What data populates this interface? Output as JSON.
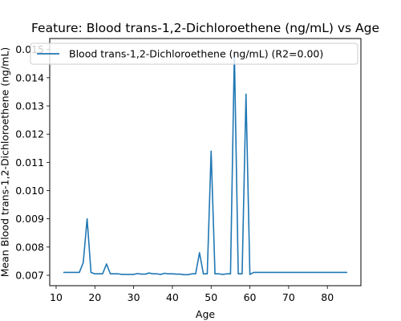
{
  "chart_data": {
    "type": "line",
    "title": "Feature: Blood trans-1,2-Dichloroethene (ng/mL) vs Age",
    "xlabel": "Age",
    "ylabel": "Mean Blood trans-1,2-Dichloroethene (ng/mL)",
    "xlim": [
      8.35,
      88.65
    ],
    "ylim": [
      0.00663,
      0.01539
    ],
    "xticks": [
      10,
      20,
      30,
      40,
      50,
      60,
      70,
      80
    ],
    "yticks": [
      0.007,
      0.008,
      0.009,
      0.01,
      0.011,
      0.012,
      0.013,
      0.014,
      0.015
    ],
    "ytick_labels": [
      "0.007",
      "0.008",
      "0.009",
      "0.010",
      "0.011",
      "0.012",
      "0.013",
      "0.014",
      "0.015"
    ],
    "grid": false,
    "legend_position": "top",
    "series": [
      {
        "name": "Blood trans-1,2-Dichloroethene (ng/mL) (R2=0.00)",
        "color": "#1f77b4",
        "x": [
          12,
          13,
          14,
          15,
          16,
          17,
          18,
          19,
          20,
          21,
          22,
          23,
          24,
          25,
          26,
          27,
          28,
          29,
          30,
          31,
          32,
          33,
          34,
          35,
          36,
          37,
          38,
          39,
          40,
          41,
          42,
          43,
          44,
          45,
          46,
          47,
          48,
          49,
          50,
          51,
          52,
          53,
          54,
          55,
          56,
          57,
          58,
          59,
          60,
          61,
          62,
          63,
          64,
          65,
          66,
          67,
          68,
          69,
          70,
          71,
          72,
          73,
          74,
          75,
          76,
          77,
          78,
          79,
          80,
          81,
          82,
          83,
          84,
          85
        ],
        "y": [
          0.0071,
          0.0071,
          0.0071,
          0.0071,
          0.0071,
          0.00745,
          0.009,
          0.0071,
          0.00705,
          0.00705,
          0.00705,
          0.0074,
          0.00705,
          0.00705,
          0.00705,
          0.00703,
          0.00703,
          0.00703,
          0.00703,
          0.00706,
          0.00704,
          0.00704,
          0.00708,
          0.00705,
          0.00705,
          0.00703,
          0.00707,
          0.00705,
          0.00705,
          0.00704,
          0.00704,
          0.00702,
          0.00702,
          0.00705,
          0.00705,
          0.0078,
          0.00705,
          0.00705,
          0.0114,
          0.00705,
          0.00705,
          0.00703,
          0.00705,
          0.00705,
          0.0149,
          0.00705,
          0.00705,
          0.01342,
          0.00703,
          0.0071,
          0.0071,
          0.0071,
          0.0071,
          0.0071,
          0.0071,
          0.0071,
          0.0071,
          0.0071,
          0.0071,
          0.0071,
          0.0071,
          0.0071,
          0.0071,
          0.0071,
          0.0071,
          0.0071,
          0.0071,
          0.0071,
          0.0071,
          0.0071,
          0.0071,
          0.0071,
          0.0071,
          0.0071
        ]
      }
    ]
  }
}
